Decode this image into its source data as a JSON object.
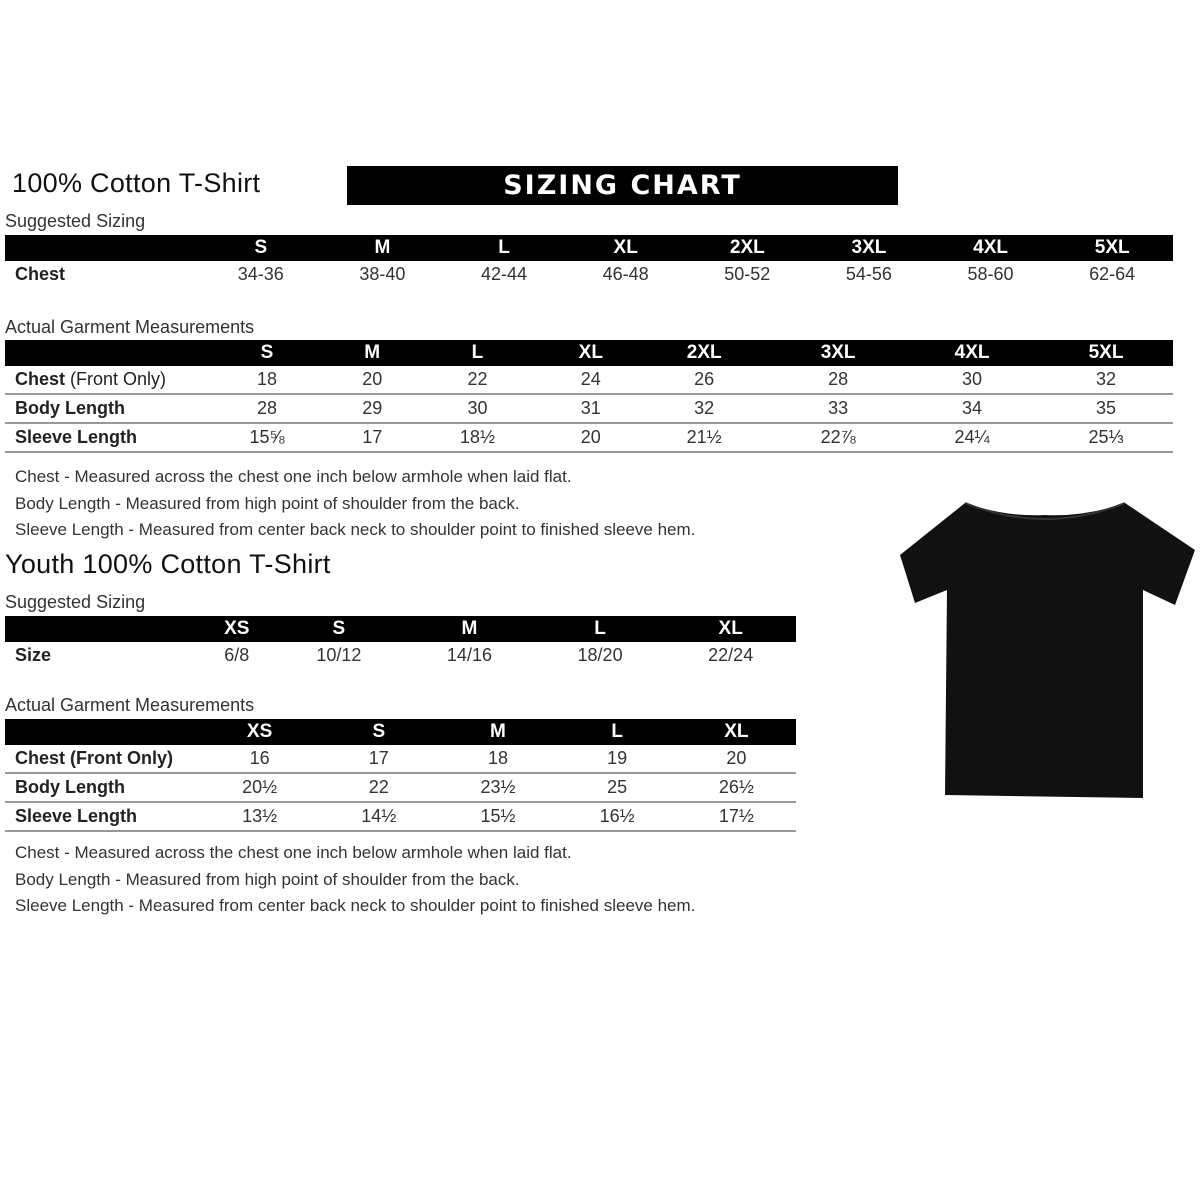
{
  "adult": {
    "title": "100% Cotton T-Shirt",
    "banner": "SIZING CHART",
    "suggested_label": "Suggested Sizing",
    "sizes": [
      "S",
      "M",
      "L",
      "XL",
      "2XL",
      "3XL",
      "4XL",
      "5XL"
    ],
    "suggested_rows": [
      {
        "label": "Chest",
        "values": [
          "34-36",
          "38-40",
          "42-44",
          "46-48",
          "50-52",
          "54-56",
          "58-60",
          "62-64"
        ]
      }
    ],
    "actual_label": "Actual Garment Measurements",
    "actual_rows": [
      {
        "label": "Chest",
        "label_note": "(Front Only)",
        "values": [
          "18",
          "20",
          "22",
          "24",
          "26",
          "28",
          "30",
          "32"
        ]
      },
      {
        "label": "Body Length",
        "values": [
          "28",
          "29",
          "30",
          "31",
          "32",
          "33",
          "34",
          "35"
        ]
      },
      {
        "label": "Sleeve Length",
        "values": [
          "15⅝",
          "17",
          "18½",
          "20",
          "21½",
          "22⅞",
          "24¼",
          "25⅓"
        ]
      }
    ],
    "notes": [
      "Chest - Measured across the chest one inch below armhole when laid flat.",
      "Body Length - Measured from high point of shoulder from the back.",
      "Sleeve Length - Measured from center back neck to shoulder point to finished sleeve hem."
    ]
  },
  "youth": {
    "title": "Youth 100% Cotton T-Shirt",
    "suggested_label": "Suggested Sizing",
    "sizes": [
      "XS",
      "S",
      "M",
      "L",
      "XL"
    ],
    "suggested_rows": [
      {
        "label": "Size",
        "values": [
          "6/8",
          "10/12",
          "14/16",
          "18/20",
          "22/24"
        ]
      }
    ],
    "actual_label": "Actual Garment Measurements",
    "actual_rows": [
      {
        "label": "Chest (Front Only)",
        "values": [
          "16",
          "17",
          "18",
          "19",
          "20"
        ]
      },
      {
        "label": "Body Length",
        "values": [
          "20½",
          "22",
          "23½",
          "25",
          "26½"
        ]
      },
      {
        "label": "Sleeve Length",
        "values": [
          "13½",
          "14½",
          "15½",
          "16½",
          "17½"
        ]
      }
    ],
    "notes": [
      "Chest - Measured across the chest one inch below armhole when laid flat.",
      "Body Length - Measured from high point of shoulder from the back.",
      "Sleeve Length - Measured from center back neck to shoulder point to finished sleeve hem."
    ]
  },
  "tshirt_color": "#111111"
}
